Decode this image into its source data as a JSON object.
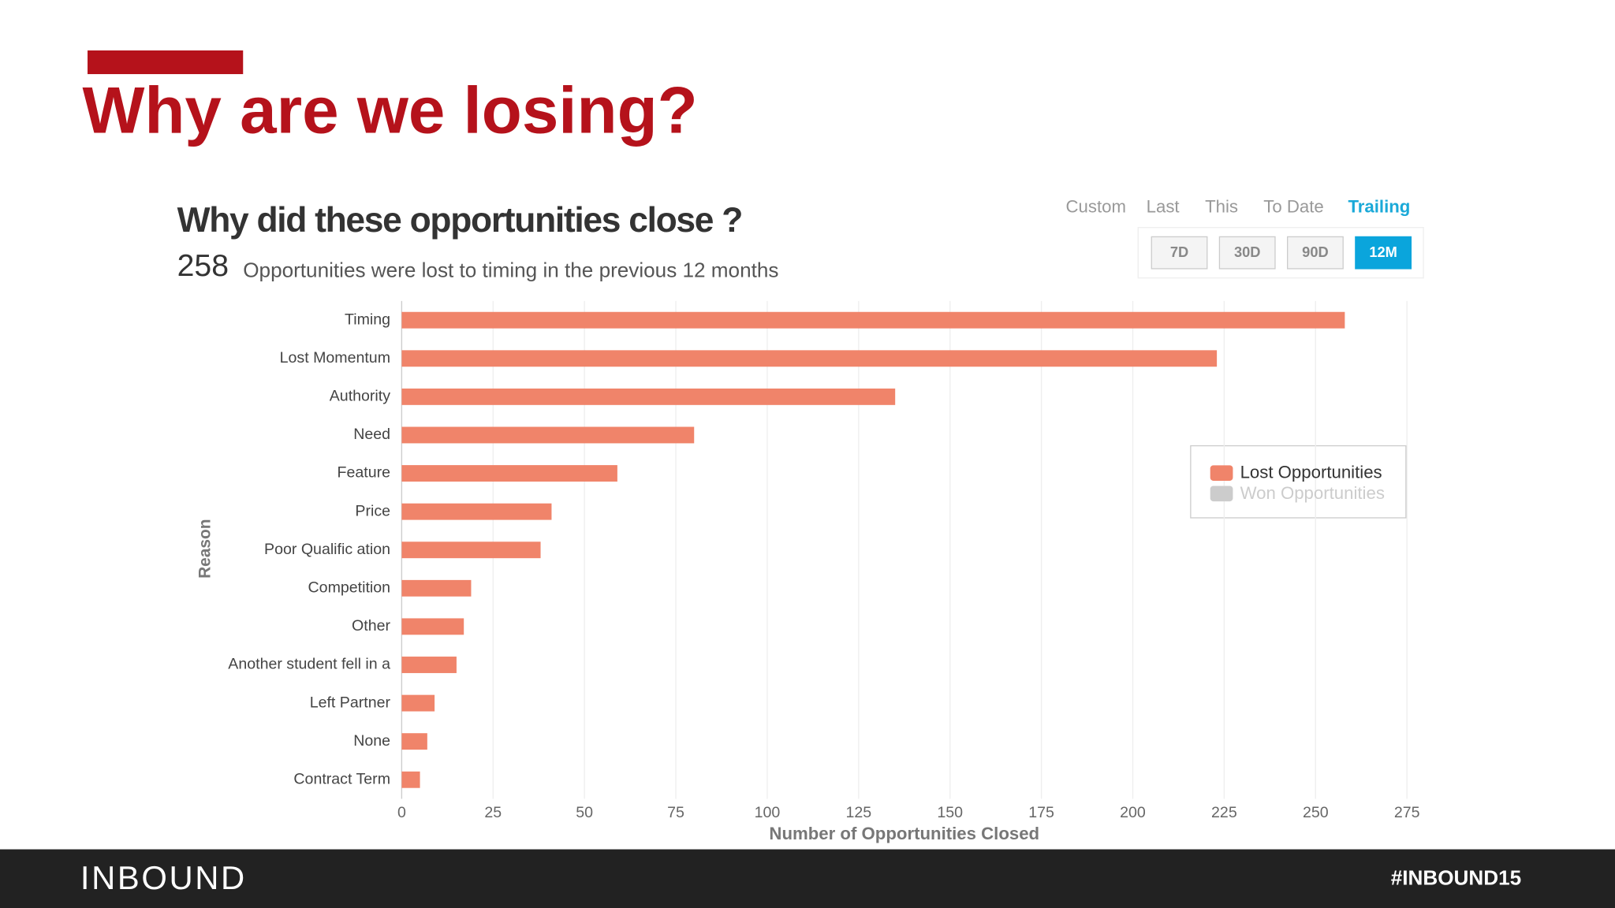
{
  "slide_title": "Why are we losing?",
  "chart_data": {
    "type": "bar",
    "orientation": "horizontal",
    "title": "Why did these opportunities close ?",
    "headline_value": 258,
    "subtitle": "Opportunities were lost to timing in the previous 12 months",
    "period_tabs": [
      "Custom",
      "Last",
      "This",
      "To Date",
      "Trailing"
    ],
    "active_tab": 4,
    "range_buttons": [
      "7D",
      "30D",
      "90D",
      "12M"
    ],
    "active_button": 3,
    "y_label": "Reason",
    "x_label": "Number of Opportunities Closed",
    "categories": [
      "Timing",
      "Lost Momentum",
      "Authority",
      "Need",
      "Feature",
      "Price",
      "Poor Qualific ation",
      "Competition",
      "Other",
      "Another student fell in a",
      "Left Partner",
      "None",
      "Contract Term"
    ],
    "series": [
      {
        "name": "Lost Opportunities",
        "color": "#f0846a",
        "values": [
          258,
          223,
          135,
          80,
          59,
          41,
          38,
          19,
          17,
          15,
          9,
          7,
          5
        ]
      }
    ],
    "hidden_series": [
      {
        "name": "Won Opportunities",
        "color": "#cccccc"
      }
    ],
    "xlim": [
      0,
      275
    ],
    "xticks": [
      0,
      25,
      50,
      75,
      100,
      125,
      150,
      175,
      200,
      225,
      250,
      275
    ],
    "grid": true,
    "legend": "right"
  },
  "footer": {
    "brand": "INBOUND",
    "hashtag": "#INBOUND15"
  }
}
